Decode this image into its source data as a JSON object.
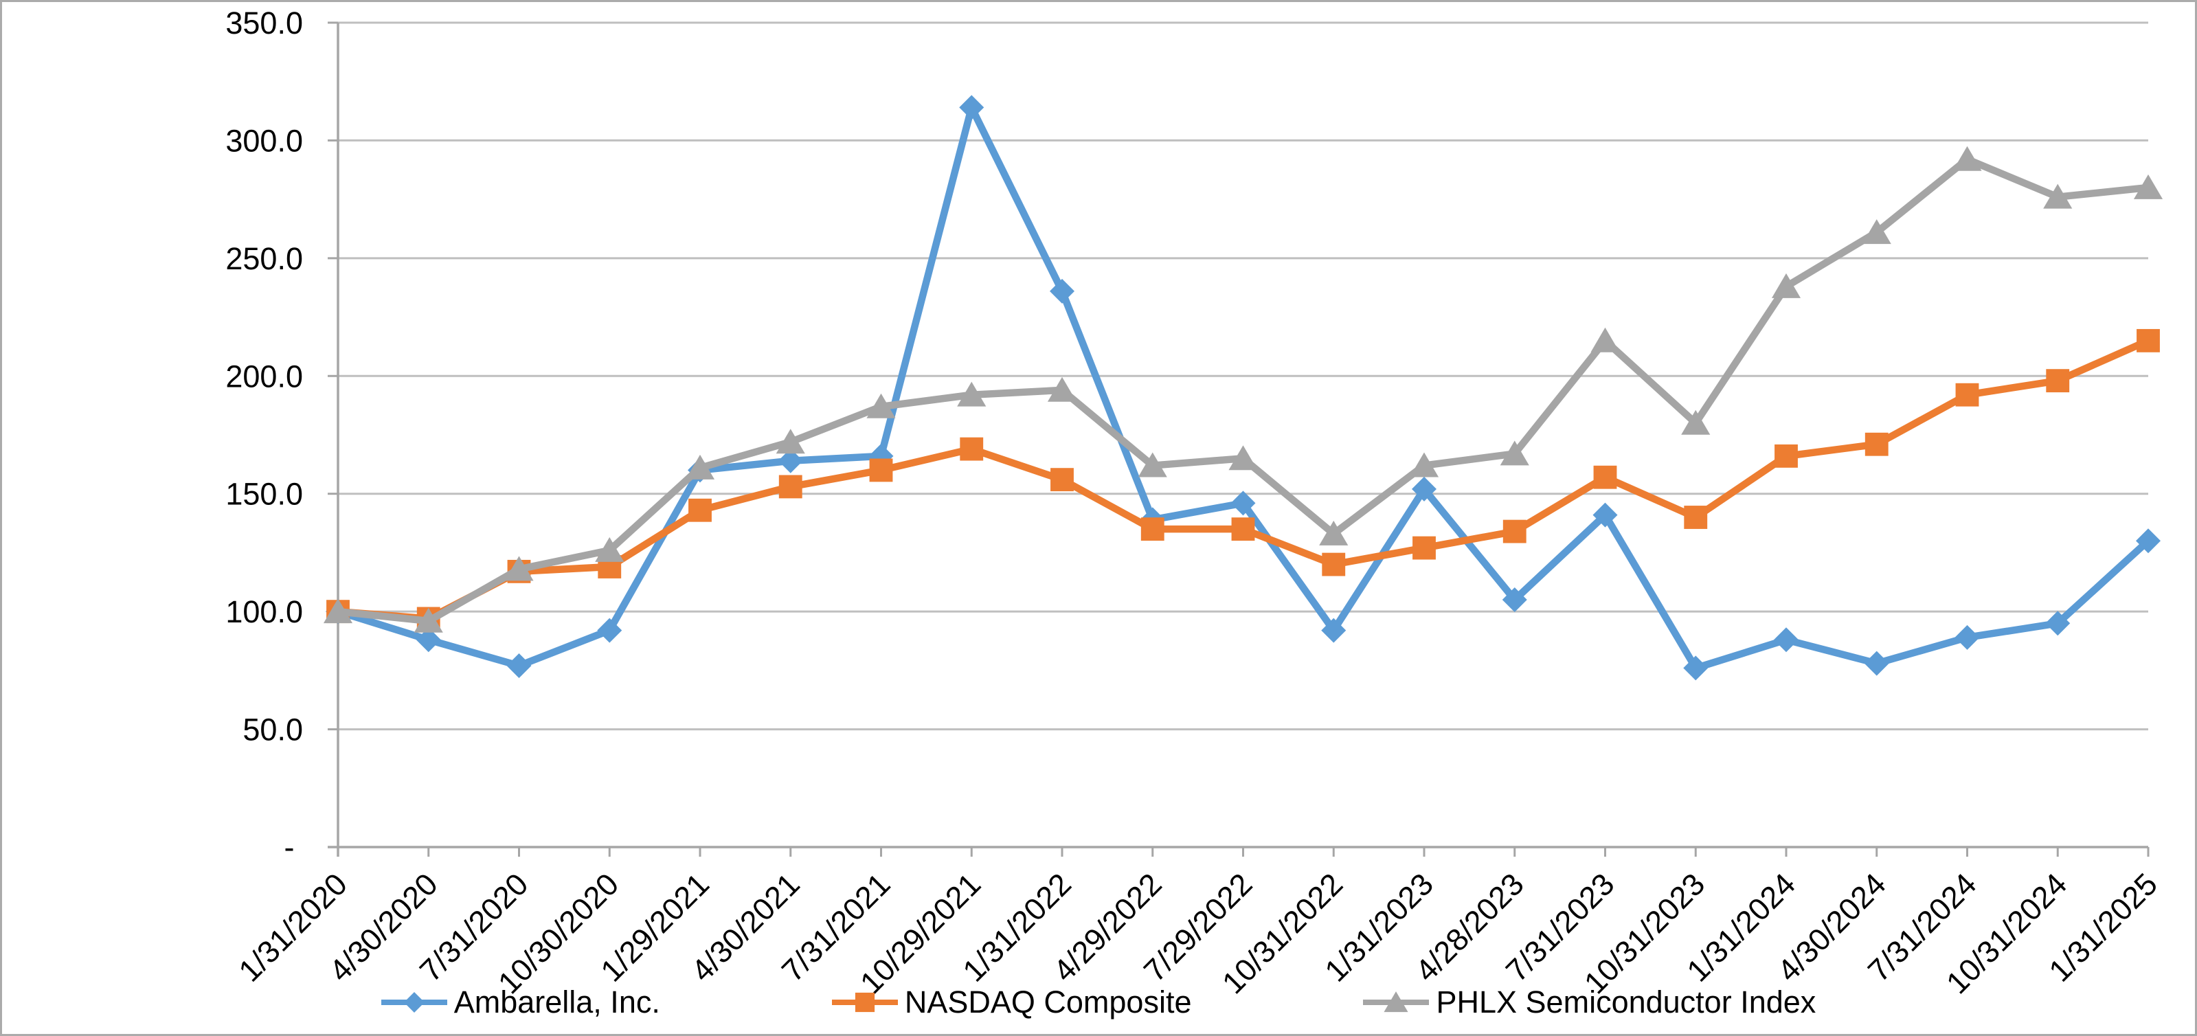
{
  "chart_data": {
    "type": "line",
    "title": "",
    "subtitle": "",
    "legend_position": "bottom",
    "grid": true,
    "x_categories": [
      "1/31/2020",
      "4/30/2020",
      "7/31/2020",
      "10/30/2020",
      "1/29/2021",
      "4/30/2021",
      "7/31/2021",
      "10/29/2021",
      "1/31/2022",
      "4/29/2022",
      "7/29/2022",
      "10/31/2022",
      "1/31/2023",
      "4/28/2023",
      "7/31/2023",
      "10/31/2023",
      "1/31/2024",
      "4/30/2024",
      "7/31/2024",
      "10/31/2024",
      "1/31/2025"
    ],
    "y_axis": {
      "min": 0,
      "max": 350,
      "step": 50,
      "tick_labels_top_to_bottom": [
        "350.0",
        "300.0",
        "250.0",
        "200.0",
        "150.0",
        "100.0",
        "50.0",
        "- "
      ]
    },
    "series": [
      {
        "name": "Ambarella, Inc.",
        "marker": "diamond",
        "color": "#5B9BD5",
        "values": [
          100,
          88,
          77,
          92,
          160,
          164,
          166,
          314,
          236,
          139,
          146,
          92,
          152,
          105,
          141,
          76,
          88,
          78,
          89,
          95,
          130
        ]
      },
      {
        "name": "NASDAQ Composite",
        "marker": "square",
        "color": "#ED7D31",
        "values": [
          100,
          97,
          117,
          119,
          143,
          153,
          160,
          169,
          156,
          135,
          135,
          120,
          127,
          134,
          157,
          140,
          166,
          171,
          192,
          198,
          215
        ]
      },
      {
        "name": "PHLX Semiconductor Index",
        "marker": "triangle",
        "color": "#A5A5A5",
        "values": [
          100,
          96,
          118,
          126,
          161,
          172,
          187,
          192,
          194,
          162,
          165,
          133,
          162,
          167,
          215,
          180,
          238,
          261,
          292,
          276,
          280
        ]
      }
    ]
  },
  "style": {
    "background": "#FFFFFF",
    "gridline_color": "#BFBFBF",
    "axis_color": "#A6A6A6",
    "text_color": "#000000",
    "border_color": "#ABABAB"
  }
}
